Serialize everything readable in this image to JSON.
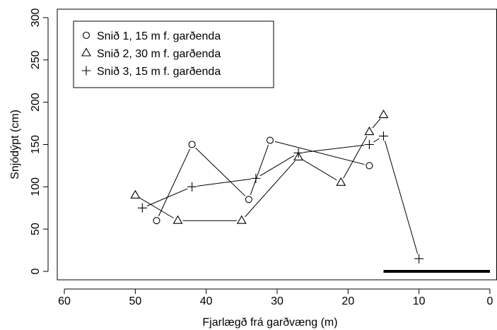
{
  "chart_data": {
    "type": "line",
    "xlabel": "Fjarlægð frá garðvæng (m)",
    "ylabel": "Snjódýpt (cm)",
    "xlim": [
      61,
      -1
    ],
    "ylim": [
      -10,
      310
    ],
    "x_reversed": true,
    "xticks": [
      60,
      50,
      40,
      30,
      20,
      10,
      0
    ],
    "xtick_labels": [
      "60",
      "50",
      "40",
      "30",
      "20",
      "10",
      "0"
    ],
    "yticks": [
      0,
      50,
      100,
      150,
      200,
      250,
      300
    ],
    "ytick_labels": [
      "0",
      "50",
      "100",
      "150",
      "200",
      "250",
      "300"
    ],
    "grid": false,
    "legend_position": "top-left",
    "series": [
      {
        "name": "Snið 1, 15 m f. garðenda",
        "marker": "circle",
        "points": [
          [
            47,
            60
          ],
          [
            42,
            150
          ],
          [
            34,
            85
          ],
          [
            31,
            155
          ],
          [
            17,
            125
          ]
        ]
      },
      {
        "name": "Snið 2, 30 m f. garðenda",
        "marker": "triangle",
        "points": [
          [
            50,
            90
          ],
          [
            44,
            60
          ],
          [
            35,
            60
          ],
          [
            27,
            135
          ],
          [
            21,
            105
          ],
          [
            17,
            165
          ],
          [
            15,
            185
          ]
        ]
      },
      {
        "name": "Snið 3, 15 m f. garðenda",
        "marker": "plus",
        "points": [
          [
            49,
            75
          ],
          [
            42,
            100
          ],
          [
            33,
            110
          ],
          [
            27,
            140
          ],
          [
            17,
            150
          ],
          [
            15,
            160
          ],
          [
            10,
            15
          ]
        ]
      }
    ],
    "baseline_segment": {
      "x": [
        15,
        0
      ],
      "y": 0
    }
  }
}
